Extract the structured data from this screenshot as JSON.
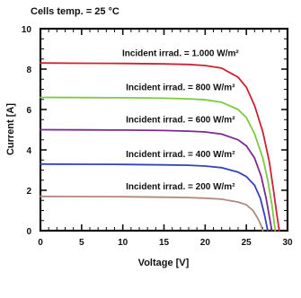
{
  "chart_data": {
    "type": "line",
    "title": "Cells temp. = 25 °C",
    "xlabel": "Voltage [V]",
    "ylabel": "Current [A]",
    "xlim": [
      0,
      30
    ],
    "ylim": [
      0,
      10
    ],
    "xticks": [
      0,
      5,
      10,
      15,
      20,
      25,
      30
    ],
    "yticks": [
      0,
      2,
      4,
      6,
      8,
      10
    ],
    "grid": false,
    "series": [
      {
        "name": "Incident irrad. = 1.000 W/m²",
        "color": "#cc2233",
        "points": [
          [
            0,
            8.3
          ],
          [
            5,
            8.29
          ],
          [
            10,
            8.28
          ],
          [
            15,
            8.26
          ],
          [
            18,
            8.23
          ],
          [
            20,
            8.18
          ],
          [
            22,
            8.05
          ],
          [
            24,
            7.6
          ],
          [
            25,
            7.1
          ],
          [
            26,
            6.2
          ],
          [
            27,
            4.9
          ],
          [
            27.8,
            3.4
          ],
          [
            28.3,
            2.0
          ],
          [
            28.7,
            0.8
          ],
          [
            29.0,
            0.0
          ]
        ]
      },
      {
        "name": "Incident irrad. = 800 W/m²",
        "color": "#7ec843",
        "points": [
          [
            0,
            6.6
          ],
          [
            5,
            6.59
          ],
          [
            10,
            6.58
          ],
          [
            15,
            6.56
          ],
          [
            18,
            6.53
          ],
          [
            20,
            6.48
          ],
          [
            22,
            6.36
          ],
          [
            24,
            6.0
          ],
          [
            25,
            5.6
          ],
          [
            26,
            4.8
          ],
          [
            27,
            3.6
          ],
          [
            27.6,
            2.5
          ],
          [
            28.1,
            1.3
          ],
          [
            28.5,
            0.0
          ]
        ]
      },
      {
        "name": "Incident irrad. = 600 W/m²",
        "color": "#7a2c8c",
        "points": [
          [
            0,
            5.0
          ],
          [
            5,
            4.99
          ],
          [
            10,
            4.98
          ],
          [
            15,
            4.96
          ],
          [
            18,
            4.93
          ],
          [
            20,
            4.89
          ],
          [
            22,
            4.78
          ],
          [
            24,
            4.5
          ],
          [
            25,
            4.2
          ],
          [
            26,
            3.6
          ],
          [
            26.8,
            2.7
          ],
          [
            27.4,
            1.6
          ],
          [
            27.8,
            0.7
          ],
          [
            28.1,
            0.0
          ]
        ]
      },
      {
        "name": "Incident irrad. = 400 W/m²",
        "color": "#3344bb",
        "points": [
          [
            0,
            3.3
          ],
          [
            5,
            3.29
          ],
          [
            10,
            3.28
          ],
          [
            15,
            3.26
          ],
          [
            18,
            3.24
          ],
          [
            20,
            3.2
          ],
          [
            22,
            3.12
          ],
          [
            24,
            2.9
          ],
          [
            25,
            2.68
          ],
          [
            26,
            2.25
          ],
          [
            26.7,
            1.6
          ],
          [
            27.2,
            0.8
          ],
          [
            27.6,
            0.0
          ]
        ]
      },
      {
        "name": "Incident irrad. = 200 W/m²",
        "color": "#b08a80",
        "points": [
          [
            0,
            1.7
          ],
          [
            5,
            1.69
          ],
          [
            10,
            1.68
          ],
          [
            15,
            1.66
          ],
          [
            18,
            1.64
          ],
          [
            20,
            1.61
          ],
          [
            22,
            1.56
          ],
          [
            24,
            1.42
          ],
          [
            25,
            1.28
          ],
          [
            25.8,
            1.0
          ],
          [
            26.4,
            0.6
          ],
          [
            26.8,
            0.25
          ],
          [
            27.0,
            0.0
          ]
        ]
      }
    ]
  }
}
